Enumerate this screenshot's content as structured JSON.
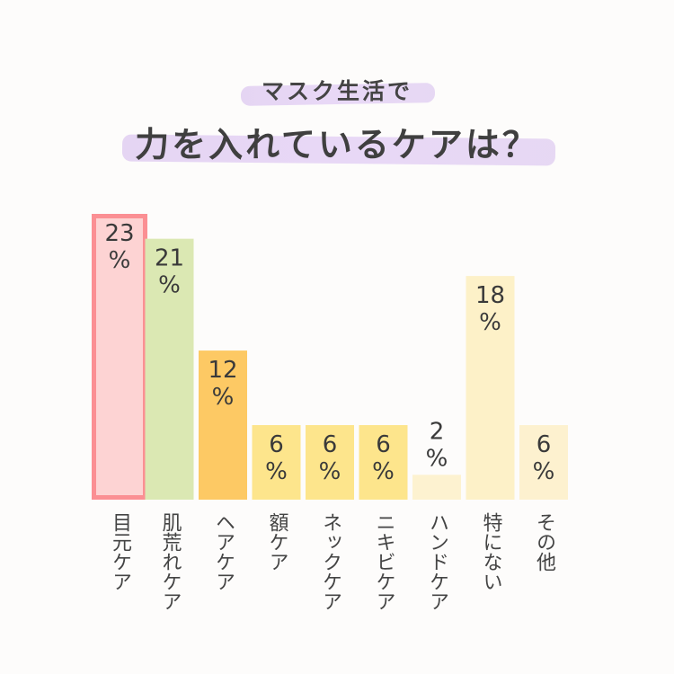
{
  "header": {
    "subtitle": "マスク生活で",
    "title": "力を入れているケアは？"
  },
  "chart_data": {
    "type": "bar",
    "categories": [
      "目元ケア",
      "肌荒れケア",
      "ヘアケア",
      "額ケア",
      "ネックケア",
      "ニキビケア",
      "ハンドケア",
      "特にない",
      "その他"
    ],
    "values": [
      23,
      21,
      12,
      6,
      6,
      6,
      2,
      18,
      6
    ],
    "value_labels": [
      "23",
      "21",
      "12",
      "6",
      "6",
      "6",
      "2",
      "18",
      "6"
    ],
    "unit": "%",
    "ylim": [
      0,
      23
    ],
    "highlight_index": 0,
    "colors": [
      "#fdd3d3",
      "#dbe8b3",
      "#fdc964",
      "#fde58c",
      "#fde58c",
      "#fde58c",
      "#fdf2d0",
      "#fdf1c8",
      "#fdf1cf"
    ],
    "highlight_border": "#fb8f93",
    "label_color": "#3a3a3a",
    "category_label_color": "#444444"
  }
}
